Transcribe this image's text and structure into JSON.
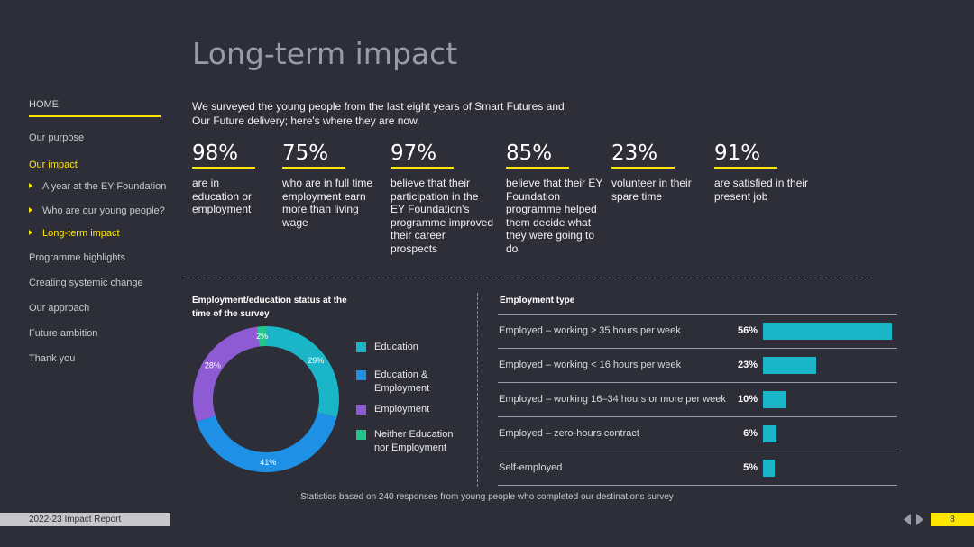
{
  "title": "Long-term impact",
  "sidebar": {
    "home": "HOME",
    "items": [
      {
        "label": "Our purpose",
        "active": false,
        "sub": false
      },
      {
        "label": "Our impact",
        "active": true,
        "sub": false
      },
      {
        "label": "A year at the EY Foundation",
        "active": false,
        "sub": true
      },
      {
        "label": "Who are our young people?",
        "active": false,
        "sub": true
      },
      {
        "label": "Long-term impact",
        "active": true,
        "sub": true
      },
      {
        "label": "Programme highlights",
        "active": false,
        "sub": false
      },
      {
        "label": "Creating systemic change",
        "active": false,
        "sub": false
      },
      {
        "label": "Our approach",
        "active": false,
        "sub": false
      },
      {
        "label": "Future ambition",
        "active": false,
        "sub": false
      },
      {
        "label": "Thank you",
        "active": false,
        "sub": false
      }
    ]
  },
  "intro": "We surveyed the young people from the last eight years of Smart Futures and Our Future delivery; here's where they are now.",
  "stats": [
    {
      "value": "98%",
      "desc": "are in education or employment"
    },
    {
      "value": "75%",
      "desc": "who are in full time employment earn more than living wage"
    },
    {
      "value": "97%",
      "desc": "believe that their participation in the EY Foundation's programme improved their career prospects"
    },
    {
      "value": "85%",
      "desc": "believe that their EY Foundation programme helped them decide what they were going to do"
    },
    {
      "value": "23%",
      "desc": "volunteer in their spare time"
    },
    {
      "value": "91%",
      "desc": "are satisfied in their present job"
    }
  ],
  "colors": {
    "accent": "#ffe600",
    "background": "#2e2e38",
    "bar": "#1bb5c8"
  },
  "chart_data": [
    {
      "type": "pie",
      "title": "Employment/education status at the time of the survey",
      "categories": [
        "Education",
        "Education & Employment",
        "Employment",
        "Neither Education nor Employment"
      ],
      "values": [
        29,
        41,
        28,
        2
      ],
      "value_labels": [
        "29%",
        "41%",
        "28%",
        "2%"
      ],
      "colors": [
        "#1bb5c8",
        "#1e90e6",
        "#8f5bd4",
        "#25c48a"
      ],
      "legend": "right"
    },
    {
      "type": "bar",
      "orientation": "horizontal",
      "title": "Employment type",
      "categories": [
        "Employed – working ≥ 35 hours per week",
        "Employed – working < 16 hours per week",
        "Employed – working 16–34 hours or more per week",
        "Employed – zero-hours contract",
        "Self-employed"
      ],
      "values": [
        56,
        23,
        10,
        6,
        5
      ],
      "value_labels": [
        "56%",
        "23%",
        "10%",
        "6%",
        "5%"
      ],
      "xlim": [
        0,
        56
      ],
      "color": "#1bb5c8"
    }
  ],
  "footnote": "Statistics based on 240 responses from young people who completed our destinations survey",
  "footer": {
    "report": "2022-23 Impact Report",
    "page": "8"
  }
}
